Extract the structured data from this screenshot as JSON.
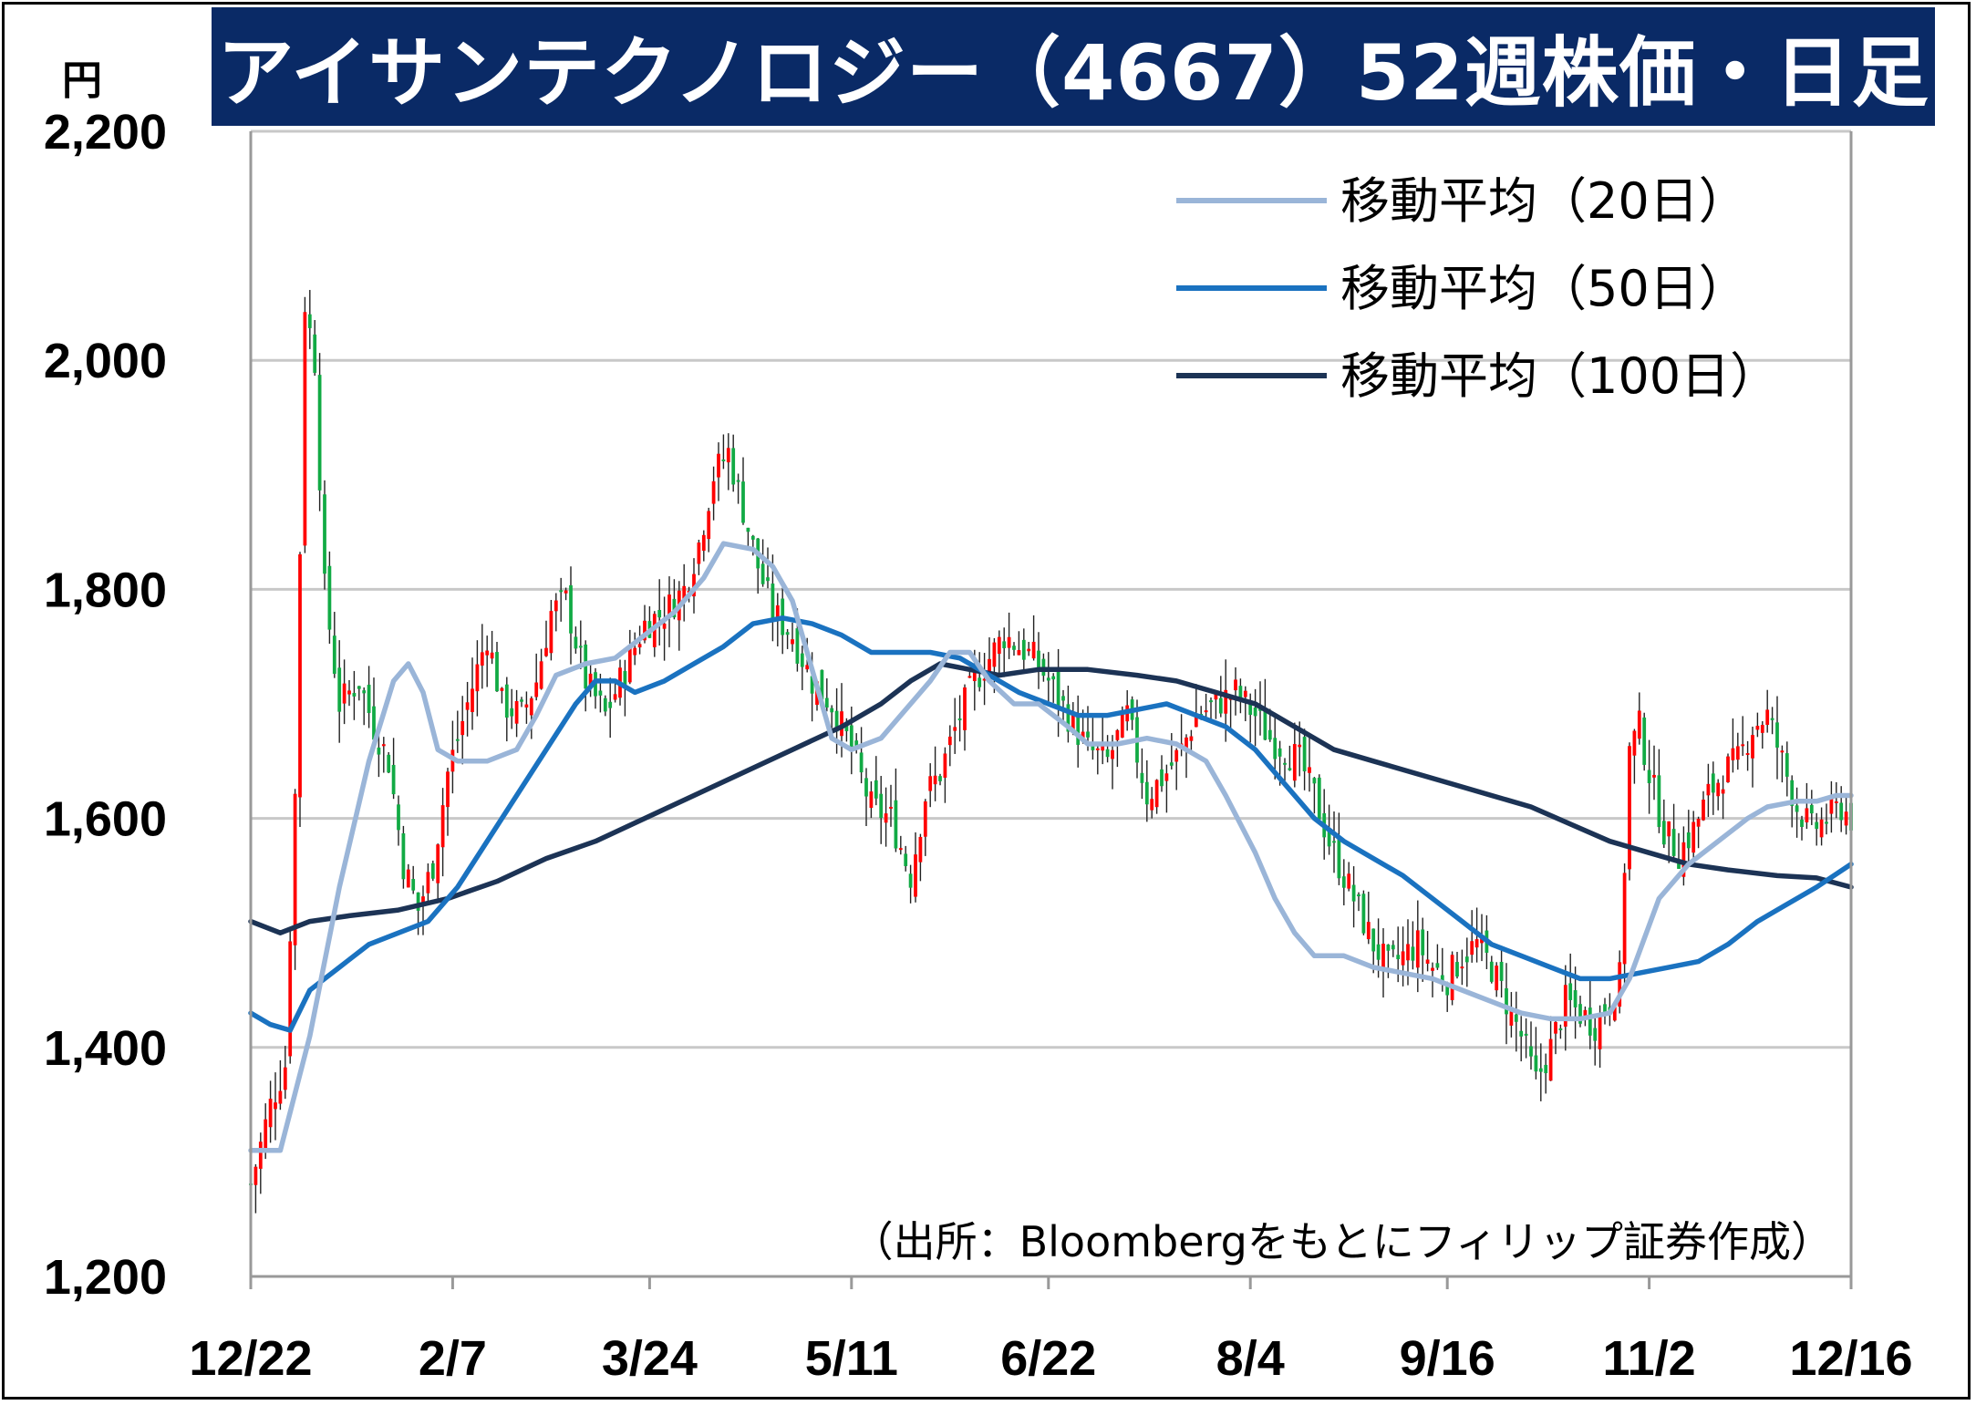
{
  "title": "アイサンテクノロジー（4667）52週株価・日足",
  "unit_label": "円",
  "source": "（出所：Bloombergをもとにフィリップ証券作成）",
  "colors": {
    "title_bg": "#0a2a66",
    "up": "#ff0000",
    "down": "#11aa44",
    "ma20": "#9ab5d8",
    "ma50": "#1a72c0",
    "ma100": "#1c3355",
    "grid": "#c8c8c8"
  },
  "chart_data": {
    "type": "candlestick",
    "ylim": [
      1200,
      2200
    ],
    "yticks": [
      "1,200",
      "1,400",
      "1,600",
      "1,800",
      "2,000",
      "2,200"
    ],
    "ytick_values": [
      1200,
      1400,
      1600,
      1800,
      2000,
      2200
    ],
    "xticks": [
      "12/22",
      "2/7",
      "3/24",
      "5/11",
      "6/22",
      "8/4",
      "9/16",
      "11/2",
      "12/16"
    ],
    "grid": true,
    "legend_position": "top-right",
    "legend": [
      "移動平均（20日）",
      "移動平均（50日）",
      "移動平均（100日）"
    ],
    "close_anchors": [
      [
        0,
        1280
      ],
      [
        4,
        1350
      ],
      [
        7,
        1385
      ],
      [
        9,
        1620
      ],
      [
        11,
        2050
      ],
      [
        13,
        2000
      ],
      [
        15,
        1800
      ],
      [
        18,
        1700
      ],
      [
        22,
        1720
      ],
      [
        25,
        1680
      ],
      [
        28,
        1650
      ],
      [
        31,
        1560
      ],
      [
        34,
        1520
      ],
      [
        37,
        1560
      ],
      [
        40,
        1640
      ],
      [
        44,
        1700
      ],
      [
        48,
        1760
      ],
      [
        51,
        1700
      ],
      [
        55,
        1690
      ],
      [
        58,
        1720
      ],
      [
        61,
        1780
      ],
      [
        64,
        1790
      ],
      [
        68,
        1720
      ],
      [
        72,
        1690
      ],
      [
        76,
        1730
      ],
      [
        80,
        1770
      ],
      [
        84,
        1780
      ],
      [
        88,
        1800
      ],
      [
        91,
        1840
      ],
      [
        94,
        1900
      ],
      [
        97,
        1920
      ],
      [
        100,
        1870
      ],
      [
        103,
        1820
      ],
      [
        106,
        1780
      ],
      [
        110,
        1760
      ],
      [
        114,
        1720
      ],
      [
        118,
        1700
      ],
      [
        122,
        1660
      ],
      [
        126,
        1610
      ],
      [
        130,
        1600
      ],
      [
        134,
        1550
      ],
      [
        137,
        1620
      ],
      [
        140,
        1640
      ],
      [
        144,
        1690
      ],
      [
        147,
        1720
      ],
      [
        150,
        1740
      ],
      [
        153,
        1760
      ],
      [
        156,
        1750
      ],
      [
        159,
        1740
      ],
      [
        162,
        1720
      ],
      [
        166,
        1690
      ],
      [
        170,
        1660
      ],
      [
        174,
        1650
      ],
      [
        178,
        1690
      ],
      [
        182,
        1620
      ],
      [
        186,
        1640
      ],
      [
        189,
        1660
      ],
      [
        192,
        1690
      ],
      [
        196,
        1700
      ],
      [
        200,
        1710
      ],
      [
        204,
        1690
      ],
      [
        207,
        1670
      ],
      [
        210,
        1660
      ],
      [
        213,
        1650
      ],
      [
        216,
        1620
      ],
      [
        219,
        1580
      ],
      [
        222,
        1550
      ],
      [
        225,
        1520
      ],
      [
        228,
        1490
      ],
      [
        231,
        1470
      ],
      [
        234,
        1480
      ],
      [
        237,
        1490
      ],
      [
        240,
        1470
      ],
      [
        243,
        1460
      ],
      [
        246,
        1480
      ],
      [
        249,
        1490
      ],
      [
        252,
        1470
      ],
      [
        255,
        1440
      ],
      [
        258,
        1410
      ],
      [
        261,
        1370
      ],
      [
        264,
        1400
      ],
      [
        267,
        1440
      ],
      [
        270,
        1430
      ],
      [
        273,
        1420
      ],
      [
        276,
        1440
      ],
      [
        278,
        1460
      ],
      [
        280,
        1660
      ],
      [
        282,
        1680
      ],
      [
        284,
        1640
      ],
      [
        287,
        1590
      ],
      [
        290,
        1570
      ],
      [
        293,
        1590
      ],
      [
        296,
        1620
      ],
      [
        299,
        1640
      ],
      [
        302,
        1650
      ],
      [
        305,
        1680
      ],
      [
        308,
        1690
      ],
      [
        311,
        1650
      ],
      [
        314,
        1610
      ],
      [
        317,
        1590
      ],
      [
        320,
        1600
      ],
      [
        323,
        1610
      ],
      [
        325,
        1600
      ]
    ],
    "ma20_anchors": [
      [
        0,
        1310
      ],
      [
        6,
        1310
      ],
      [
        12,
        1410
      ],
      [
        18,
        1540
      ],
      [
        24,
        1650
      ],
      [
        29,
        1720
      ],
      [
        32,
        1735
      ],
      [
        35,
        1710
      ],
      [
        38,
        1660
      ],
      [
        42,
        1650
      ],
      [
        48,
        1650
      ],
      [
        54,
        1660
      ],
      [
        58,
        1690
      ],
      [
        62,
        1725
      ],
      [
        68,
        1735
      ],
      [
        74,
        1740
      ],
      [
        80,
        1760
      ],
      [
        86,
        1780
      ],
      [
        92,
        1810
      ],
      [
        96,
        1840
      ],
      [
        102,
        1835
      ],
      [
        106,
        1820
      ],
      [
        110,
        1790
      ],
      [
        114,
        1730
      ],
      [
        118,
        1670
      ],
      [
        122,
        1660
      ],
      [
        128,
        1670
      ],
      [
        132,
        1690
      ],
      [
        138,
        1720
      ],
      [
        142,
        1745
      ],
      [
        146,
        1745
      ],
      [
        150,
        1720
      ],
      [
        155,
        1700
      ],
      [
        160,
        1700
      ],
      [
        166,
        1680
      ],
      [
        170,
        1665
      ],
      [
        176,
        1665
      ],
      [
        182,
        1670
      ],
      [
        188,
        1665
      ],
      [
        194,
        1650
      ],
      [
        198,
        1620
      ],
      [
        204,
        1570
      ],
      [
        208,
        1530
      ],
      [
        212,
        1500
      ],
      [
        216,
        1480
      ],
      [
        222,
        1480
      ],
      [
        228,
        1470
      ],
      [
        234,
        1465
      ],
      [
        240,
        1460
      ],
      [
        246,
        1450
      ],
      [
        252,
        1440
      ],
      [
        258,
        1430
      ],
      [
        264,
        1425
      ],
      [
        270,
        1425
      ],
      [
        276,
        1430
      ],
      [
        280,
        1460
      ],
      [
        286,
        1530
      ],
      [
        292,
        1560
      ],
      [
        298,
        1580
      ],
      [
        304,
        1600
      ],
      [
        308,
        1610
      ],
      [
        314,
        1615
      ],
      [
        318,
        1615
      ],
      [
        322,
        1620
      ],
      [
        325,
        1620
      ]
    ],
    "ma50_anchors": [
      [
        0,
        1430
      ],
      [
        4,
        1420
      ],
      [
        8,
        1415
      ],
      [
        12,
        1450
      ],
      [
        18,
        1470
      ],
      [
        24,
        1490
      ],
      [
        30,
        1500
      ],
      [
        36,
        1510
      ],
      [
        42,
        1540
      ],
      [
        48,
        1580
      ],
      [
        54,
        1620
      ],
      [
        60,
        1660
      ],
      [
        66,
        1700
      ],
      [
        70,
        1720
      ],
      [
        74,
        1720
      ],
      [
        78,
        1710
      ],
      [
        84,
        1720
      ],
      [
        90,
        1735
      ],
      [
        96,
        1750
      ],
      [
        102,
        1770
      ],
      [
        108,
        1775
      ],
      [
        114,
        1770
      ],
      [
        120,
        1760
      ],
      [
        126,
        1745
      ],
      [
        132,
        1745
      ],
      [
        138,
        1745
      ],
      [
        144,
        1740
      ],
      [
        150,
        1725
      ],
      [
        156,
        1710
      ],
      [
        162,
        1700
      ],
      [
        168,
        1690
      ],
      [
        174,
        1690
      ],
      [
        180,
        1695
      ],
      [
        186,
        1700
      ],
      [
        192,
        1690
      ],
      [
        198,
        1680
      ],
      [
        204,
        1660
      ],
      [
        210,
        1630
      ],
      [
        216,
        1600
      ],
      [
        222,
        1580
      ],
      [
        228,
        1565
      ],
      [
        234,
        1550
      ],
      [
        240,
        1530
      ],
      [
        246,
        1510
      ],
      [
        252,
        1490
      ],
      [
        258,
        1480
      ],
      [
        264,
        1470
      ],
      [
        270,
        1460
      ],
      [
        276,
        1460
      ],
      [
        282,
        1465
      ],
      [
        288,
        1470
      ],
      [
        294,
        1475
      ],
      [
        300,
        1490
      ],
      [
        306,
        1510
      ],
      [
        312,
        1525
      ],
      [
        318,
        1540
      ],
      [
        325,
        1560
      ]
    ],
    "ma100_anchors": [
      [
        0,
        1510
      ],
      [
        6,
        1500
      ],
      [
        12,
        1510
      ],
      [
        20,
        1515
      ],
      [
        30,
        1520
      ],
      [
        40,
        1530
      ],
      [
        50,
        1545
      ],
      [
        60,
        1565
      ],
      [
        70,
        1580
      ],
      [
        80,
        1600
      ],
      [
        90,
        1620
      ],
      [
        100,
        1640
      ],
      [
        110,
        1660
      ],
      [
        120,
        1680
      ],
      [
        128,
        1700
      ],
      [
        134,
        1720
      ],
      [
        140,
        1735
      ],
      [
        146,
        1730
      ],
      [
        152,
        1725
      ],
      [
        160,
        1730
      ],
      [
        170,
        1730
      ],
      [
        180,
        1725
      ],
      [
        188,
        1720
      ],
      [
        196,
        1710
      ],
      [
        204,
        1700
      ],
      [
        212,
        1680
      ],
      [
        220,
        1660
      ],
      [
        228,
        1650
      ],
      [
        236,
        1640
      ],
      [
        244,
        1630
      ],
      [
        252,
        1620
      ],
      [
        260,
        1610
      ],
      [
        268,
        1595
      ],
      [
        276,
        1580
      ],
      [
        284,
        1570
      ],
      [
        292,
        1560
      ],
      [
        300,
        1555
      ],
      [
        310,
        1550
      ],
      [
        318,
        1548
      ],
      [
        325,
        1540
      ]
    ],
    "n_days": 326,
    "xtick_day_index": [
      0,
      41,
      81,
      122,
      162,
      203,
      243,
      284,
      325
    ]
  }
}
